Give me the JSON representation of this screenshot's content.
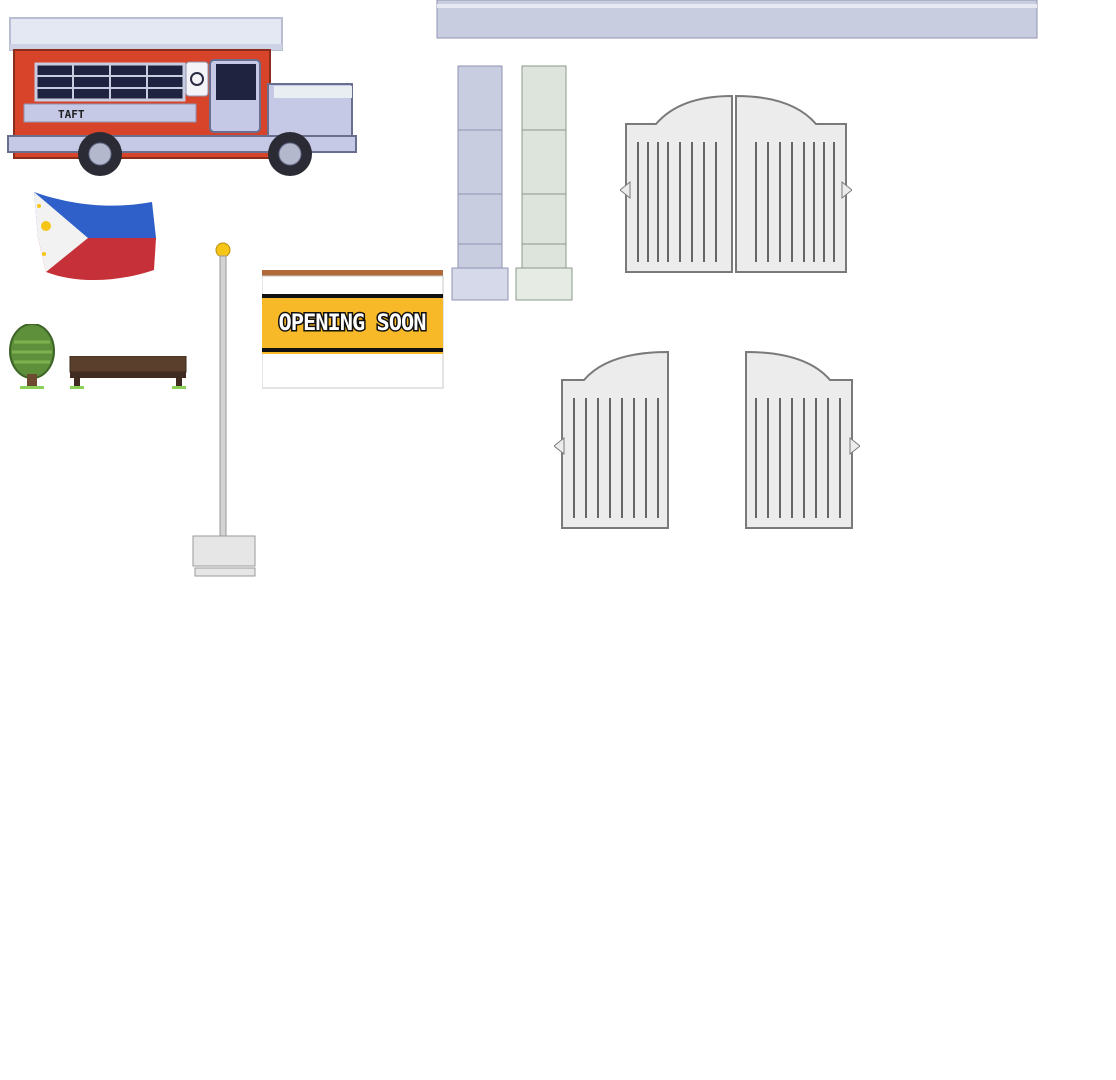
{
  "sheet": {
    "sprites": [
      {
        "id": "jeepney",
        "kind": "vehicle"
      },
      {
        "id": "philippine-flag",
        "kind": "decoration"
      },
      {
        "id": "tree",
        "kind": "foliage"
      },
      {
        "id": "bench",
        "kind": "furniture"
      },
      {
        "id": "flagpole",
        "kind": "structure"
      },
      {
        "id": "opening-soon-sign",
        "kind": "signage"
      },
      {
        "id": "awning-bar",
        "kind": "structure"
      },
      {
        "id": "pillar-lavender",
        "kind": "structure"
      },
      {
        "id": "pillar-mint",
        "kind": "structure"
      },
      {
        "id": "gate-double",
        "kind": "structure"
      },
      {
        "id": "gate-left",
        "kind": "structure"
      },
      {
        "id": "gate-right",
        "kind": "structure"
      }
    ]
  },
  "jeepney": {
    "route_label": "TAFT"
  },
  "sign": {
    "text": "OPENING SOON"
  },
  "colors": {
    "jeep_red": "#d8442a",
    "jeep_body": "#c6c9e6",
    "jeep_roof": "#e4e8f2",
    "flag_blue": "#2f5fc8",
    "flag_red": "#c63038",
    "flag_white": "#f2f2f2",
    "flag_sun": "#f5c518",
    "tree_green": "#5e8f3a",
    "bench_wood": "#5a3f2c",
    "sign_yellow": "#f7b928",
    "pillar_lavender": "#c9cde0",
    "pillar_mint": "#dde4dc",
    "gate": "#ececec"
  }
}
